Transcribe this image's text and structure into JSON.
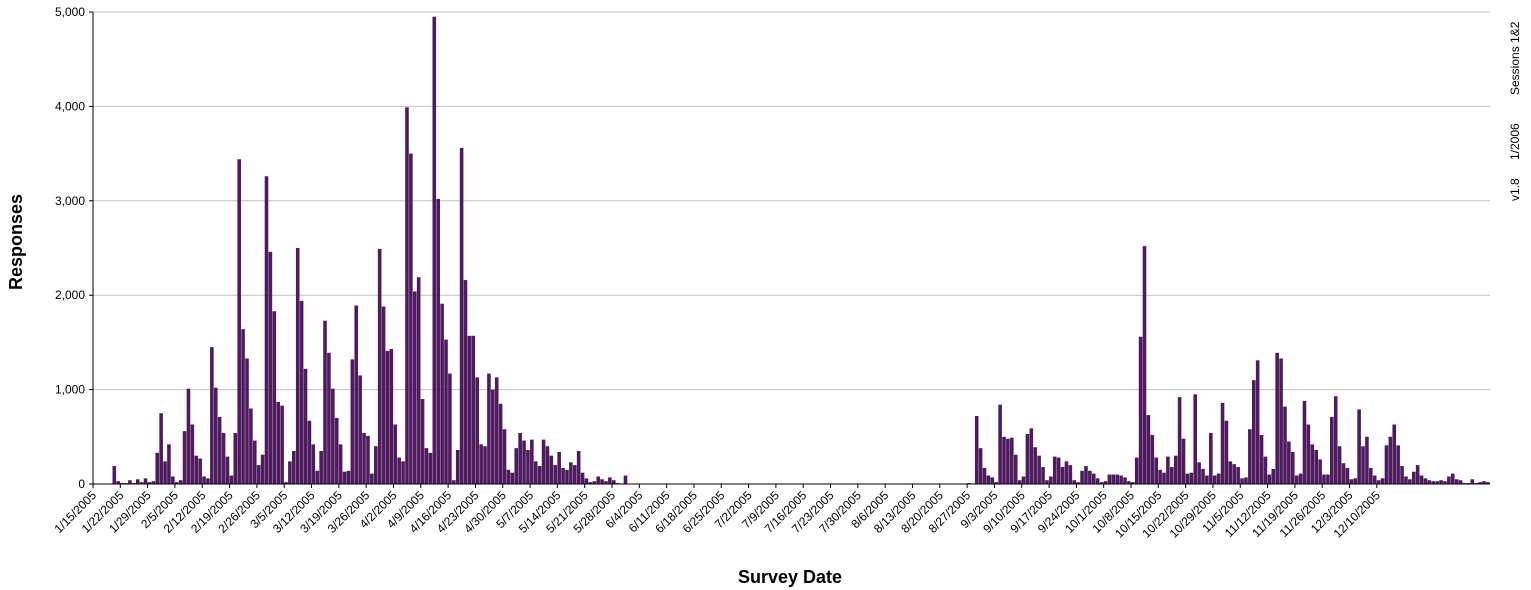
{
  "chart_data": {
    "type": "bar",
    "title": "",
    "xlabel": "Survey Date",
    "ylabel": "Responses",
    "ylim": [
      0,
      5000
    ],
    "y_ticks": [
      0,
      1000,
      2000,
      3000,
      4000,
      5000
    ],
    "y_tick_labels": [
      "0",
      "1,000",
      "2,000",
      "3,000",
      "4,000",
      "5,000"
    ],
    "grid": true,
    "legend": "none",
    "bar_color": "#4F1B5F",
    "start_date": "1/15/2005",
    "x_tick_labels": [
      "1/15/2005",
      "1/22/2005",
      "1/29/2005",
      "2/5/2005",
      "2/12/2005",
      "2/19/2005",
      "2/26/2005",
      "3/5/2005",
      "3/12/2005",
      "3/19/2005",
      "3/26/2005",
      "4/2/2005",
      "4/9/2005",
      "4/16/2005",
      "4/23/2005",
      "4/30/2005",
      "5/7/2005",
      "5/14/2005",
      "5/21/2005",
      "5/28/2005",
      "6/4/2005",
      "6/11/2005",
      "6/18/2005",
      "6/25/2005",
      "7/2/2005",
      "7/9/2005",
      "7/16/2005",
      "7/23/2005",
      "7/30/2005",
      "8/6/2005",
      "8/13/2005",
      "8/20/2005",
      "8/27/2005",
      "9/3/2005",
      "9/10/2005",
      "9/17/2005",
      "9/24/2005",
      "10/1/2005",
      "10/8/2005",
      "10/15/2005",
      "10/22/2005",
      "10/29/2005",
      "11/5/2005",
      "11/12/2005",
      "11/19/2005",
      "11/26/2005",
      "12/3/2005",
      "12/10/2005"
    ],
    "values": [
      0,
      0,
      0,
      0,
      0,
      190,
      30,
      10,
      10,
      40,
      10,
      50,
      20,
      60,
      20,
      30,
      330,
      750,
      240,
      420,
      80,
      20,
      40,
      560,
      1010,
      630,
      300,
      270,
      80,
      60,
      1450,
      1020,
      710,
      540,
      290,
      90,
      540,
      3440,
      1640,
      1330,
      800,
      460,
      200,
      310,
      3260,
      2460,
      1830,
      870,
      830,
      20,
      240,
      350,
      2500,
      1940,
      1220,
      670,
      420,
      140,
      350,
      1730,
      1390,
      1010,
      700,
      420,
      130,
      140,
      1320,
      1890,
      1150,
      540,
      510,
      110,
      400,
      2490,
      1880,
      1410,
      1430,
      630,
      280,
      240,
      3990,
      3500,
      2040,
      2190,
      900,
      380,
      330,
      4950,
      3020,
      1910,
      1530,
      1170,
      40,
      360,
      3560,
      2160,
      1570,
      1570,
      1130,
      420,
      400,
      1170,
      1000,
      1130,
      850,
      580,
      150,
      120,
      380,
      540,
      460,
      360,
      470,
      240,
      190,
      470,
      400,
      300,
      200,
      340,
      170,
      150,
      230,
      200,
      350,
      120,
      60,
      20,
      30,
      80,
      50,
      30,
      70,
      40,
      10,
      0,
      90,
      0,
      0,
      0,
      0,
      0,
      0,
      0,
      0,
      0,
      0,
      0,
      0,
      0,
      0,
      0,
      0,
      0,
      0,
      0,
      0,
      0,
      0,
      0,
      0,
      0,
      0,
      0,
      0,
      0,
      0,
      0,
      0,
      0,
      0,
      0,
      0,
      0,
      0,
      0,
      0,
      0,
      0,
      0,
      0,
      0,
      0,
      0,
      0,
      0,
      0,
      0,
      0,
      0,
      0,
      0,
      0,
      0,
      0,
      0,
      0,
      0,
      0,
      0,
      0,
      0,
      0,
      0,
      0,
      0,
      0,
      0,
      0,
      0,
      0,
      0,
      0,
      0,
      0,
      0,
      0,
      0,
      0,
      0,
      0,
      0,
      0,
      0,
      10,
      0,
      720,
      380,
      170,
      90,
      70,
      20,
      840,
      500,
      480,
      490,
      310,
      40,
      80,
      530,
      590,
      390,
      300,
      180,
      40,
      80,
      290,
      280,
      180,
      240,
      200,
      40,
      20,
      140,
      190,
      140,
      110,
      60,
      20,
      30,
      100,
      100,
      100,
      90,
      70,
      30,
      20,
      280,
      1560,
      2520,
      730,
      520,
      280,
      150,
      120,
      290,
      180,
      300,
      920,
      480,
      110,
      120,
      950,
      230,
      160,
      90,
      540,
      90,
      110,
      860,
      670,
      240,
      210,
      180,
      60,
      70,
      580,
      1100,
      1310,
      520,
      290,
      100,
      160,
      1390,
      1330,
      820,
      450,
      340,
      90,
      110,
      880,
      630,
      420,
      360,
      260,
      100,
      100,
      710,
      930,
      400,
      220,
      170,
      50,
      60,
      790,
      400,
      500,
      170,
      90,
      40,
      60,
      410,
      500,
      630,
      410,
      190,
      80,
      50,
      130,
      200,
      90,
      60,
      40,
      30,
      30,
      40,
      30,
      80,
      110,
      50,
      40,
      10,
      10,
      50,
      10,
      20,
      30,
      20
    ]
  },
  "side_note": {
    "sessions": "Sessions 1&2",
    "date": "1/2006",
    "version": "v1.8"
  }
}
